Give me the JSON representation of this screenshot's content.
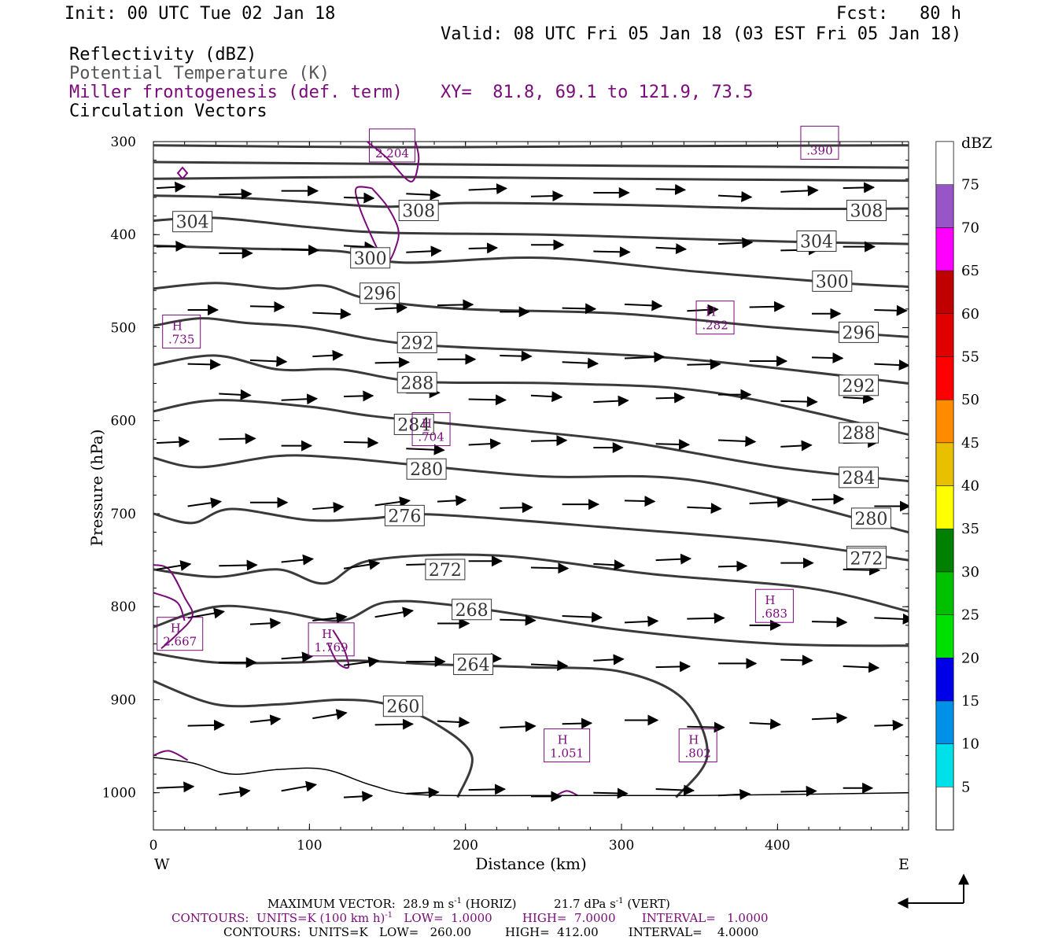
{
  "header": {
    "init": "Init: 00 UTC Tue 02 Jan 18",
    "fcst": "Fcst:   80 h",
    "valid": "Valid: 08 UTC Fri 05 Jan 18 (03 EST Fri 05 Jan 18)",
    "fields": [
      {
        "label": "Reflectivity (dBZ)",
        "color": "#000000"
      },
      {
        "label": "Potential Temperature (K)",
        "color": "#555555"
      },
      {
        "label": "Miller frontogenesis (def. term)",
        "color": "#7a0a7a"
      },
      {
        "label": "Circulation Vectors",
        "color": "#000000"
      }
    ],
    "xy": "XY=  81.8, 69.1 to 121.9, 73.5"
  },
  "chart_data": {
    "type": "cross-section",
    "ylabel": "Pressure (hPa)",
    "xlabel": "Distance (km)",
    "x_endpoints": {
      "left": "W",
      "right": "E"
    },
    "xlim": [
      0,
      484
    ],
    "ylim": [
      1040,
      300
    ],
    "y_ticks": [
      300,
      400,
      500,
      600,
      700,
      800,
      900,
      1000
    ],
    "x_ticks": [
      0,
      100,
      200,
      300,
      400
    ],
    "theta_isentropes": [
      {
        "value": 308,
        "points": [
          [
            0,
            358
          ],
          [
            50,
            360
          ],
          [
            100,
            365
          ],
          [
            150,
            370
          ],
          [
            200,
            366
          ],
          [
            300,
            368
          ],
          [
            400,
            372
          ],
          [
            484,
            372
          ]
        ],
        "labels": [
          [
            170,
            374
          ],
          [
            457,
            374
          ]
        ]
      },
      {
        "value": 304,
        "points": [
          [
            0,
            385
          ],
          [
            40,
            382
          ],
          [
            100,
            392
          ],
          [
            150,
            398
          ],
          [
            250,
            400
          ],
          [
            350,
            405
          ],
          [
            420,
            408
          ],
          [
            484,
            410
          ]
        ],
        "labels": [
          [
            25,
            386
          ],
          [
            425,
            407
          ]
        ]
      },
      {
        "value": 300,
        "points": [
          [
            0,
            412
          ],
          [
            60,
            415
          ],
          [
            120,
            418
          ],
          [
            160,
            430
          ],
          [
            250,
            425
          ],
          [
            350,
            440
          ],
          [
            440,
            452
          ],
          [
            484,
            456
          ]
        ],
        "labels": [
          [
            139,
            425
          ],
          [
            435,
            450
          ]
        ]
      },
      {
        "value": 296,
        "points": [
          [
            0,
            458
          ],
          [
            40,
            452
          ],
          [
            80,
            458
          ],
          [
            110,
            455
          ],
          [
            140,
            470
          ],
          [
            200,
            480
          ],
          [
            300,
            485
          ],
          [
            400,
            500
          ],
          [
            484,
            510
          ]
        ],
        "labels": [
          [
            145,
            463
          ],
          [
            452,
            505
          ]
        ]
      },
      {
        "value": 292,
        "points": [
          [
            0,
            498
          ],
          [
            30,
            490
          ],
          [
            60,
            495
          ],
          [
            100,
            500
          ],
          [
            160,
            517
          ],
          [
            250,
            525
          ],
          [
            350,
            535
          ],
          [
            484,
            560
          ]
        ],
        "labels": [
          [
            169,
            516
          ],
          [
            452,
            562
          ]
        ]
      },
      {
        "value": 288,
        "points": [
          [
            0,
            540
          ],
          [
            40,
            530
          ],
          [
            80,
            545
          ],
          [
            120,
            545
          ],
          [
            170,
            558
          ],
          [
            260,
            560
          ],
          [
            360,
            570
          ],
          [
            484,
            615
          ]
        ],
        "labels": [
          [
            169,
            559
          ],
          [
            452,
            613
          ]
        ]
      },
      {
        "value": 284,
        "points": [
          [
            0,
            590
          ],
          [
            40,
            578
          ],
          [
            100,
            585
          ],
          [
            140,
            595
          ],
          [
            200,
            605
          ],
          [
            300,
            622
          ],
          [
            400,
            650
          ],
          [
            484,
            665
          ]
        ],
        "labels": [
          [
            167,
            604
          ],
          [
            452,
            661
          ]
        ]
      },
      {
        "value": 280,
        "points": [
          [
            0,
            640
          ],
          [
            30,
            650
          ],
          [
            80,
            638
          ],
          [
            120,
            640
          ],
          [
            170,
            648
          ],
          [
            250,
            660
          ],
          [
            350,
            665
          ],
          [
            484,
            720
          ]
        ],
        "labels": [
          [
            175,
            652
          ],
          [
            460,
            705
          ]
        ]
      },
      {
        "value": 276,
        "points": [
          [
            0,
            700
          ],
          [
            25,
            710
          ],
          [
            50,
            695
          ],
          [
            100,
            707
          ],
          [
            140,
            705
          ],
          [
            180,
            701
          ],
          [
            300,
            716
          ],
          [
            400,
            730
          ],
          [
            484,
            750
          ]
        ],
        "labels": [
          [
            161,
            702
          ],
          [
            457,
            746
          ]
        ]
      },
      {
        "value": 272,
        "points": [
          [
            0,
            760
          ],
          [
            40,
            768
          ],
          [
            80,
            760
          ],
          [
            110,
            775
          ],
          [
            140,
            750
          ],
          [
            220,
            745
          ],
          [
            320,
            765
          ],
          [
            420,
            780
          ],
          [
            484,
            805
          ]
        ],
        "labels": [
          [
            187,
            760
          ],
          [
            457,
            748
          ]
        ]
      },
      {
        "value": 268,
        "points": [
          [
            0,
            822
          ],
          [
            40,
            800
          ],
          [
            80,
            805
          ],
          [
            120,
            815
          ],
          [
            150,
            795
          ],
          [
            200,
            800
          ],
          [
            300,
            825
          ],
          [
            400,
            840
          ],
          [
            484,
            842
          ]
        ],
        "labels": [
          [
            204,
            803
          ]
        ]
      },
      {
        "value": 264,
        "points": [
          [
            0,
            850
          ],
          [
            40,
            860
          ],
          [
            90,
            860
          ],
          [
            130,
            858
          ],
          [
            180,
            862
          ],
          [
            240,
            865
          ],
          [
            300,
            870
          ],
          [
            340,
            900
          ],
          [
            355,
            960
          ],
          [
            335,
            1005
          ]
        ],
        "labels": [
          [
            205,
            862
          ]
        ]
      },
      {
        "value": 260,
        "points": [
          [
            0,
            880
          ],
          [
            40,
            905
          ],
          [
            80,
            905
          ],
          [
            120,
            900
          ],
          [
            150,
            905
          ],
          [
            180,
            925
          ],
          [
            204,
            960
          ],
          [
            195,
            1005
          ]
        ],
        "labels": [
          [
            160,
            907
          ]
        ]
      }
    ],
    "vector_max": {
      "horizontal": "28.9 m s-1 (HORIZ)",
      "vertical": "21.7 dPa s-1 (VERT)"
    },
    "frontogenesis_maxima": [
      {
        "label": "H",
        "value": ".735"
      },
      {
        "label": "H",
        "value": ".282"
      },
      {
        "label": "H",
        "value": ".704"
      },
      {
        "label": "H",
        "value": ".683"
      },
      {
        "label": "H",
        "value": "2.667"
      },
      {
        "label": "H",
        "value": "1.769"
      },
      {
        "label": "H",
        "value": "1.051"
      },
      {
        "label": "H",
        "value": ".802"
      },
      {
        "label": "",
        "value": "2.204"
      },
      {
        "label": "",
        "value": ".390"
      }
    ],
    "colorbar": {
      "unit": "dBZ",
      "levels": [
        "5",
        "10",
        "15",
        "20",
        "25",
        "30",
        "35",
        "40",
        "45",
        "50",
        "55",
        "60",
        "65",
        "70",
        "75"
      ],
      "colors": [
        "#00e0e8",
        "#0090e8",
        "#0000e8",
        "#00e000",
        "#00c000",
        "#008000",
        "#ffff00",
        "#e8c000",
        "#ff8c00",
        "#ff0000",
        "#e00000",
        "#c00000",
        "#ff00ff",
        "#9855c8",
        "#ffffff"
      ]
    }
  },
  "footer": {
    "max_vector": "MAXIMUM VECTOR:  28.9 m s",
    "max_vector_mid": "(HORIZ)          21.7 dPa s",
    "max_vector_end": "(VERT)",
    "contours1": "CONTOURS:  UNITS=K (100 km h)",
    "contours1_rest": "   LOW=  1.0000        HIGH=  7.0000       INTERVAL=   1.0000",
    "contours2": "CONTOURS:  UNITS=K   LOW=   260.00         HIGH=  412.00        INTERVAL=    4.0000",
    "sup": "-1"
  }
}
